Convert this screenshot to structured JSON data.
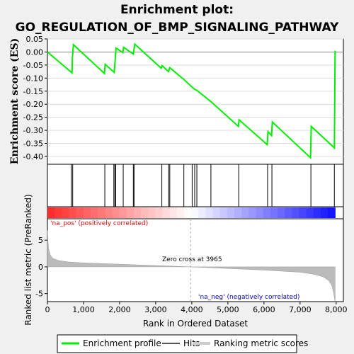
{
  "title_line1": "Enrichment plot:",
  "title_line2": "GO_REGULATION_OF_BMP_SIGNALING_PATHWAY",
  "chart_data": {
    "type": "line",
    "es_panel": {
      "ylabel": "Enrichment score (ES)",
      "ylim": [
        -0.43,
        0.05
      ],
      "yticks": [
        0.05,
        0.0,
        -0.05,
        -0.1,
        -0.15,
        -0.2,
        -0.25,
        -0.3,
        -0.35,
        -0.4
      ],
      "ytick_labels": [
        "0.05",
        "0.00",
        "-0.05",
        "-0.10",
        "-0.15",
        "-0.20",
        "-0.25",
        "-0.30",
        "-0.35",
        "-0.40"
      ],
      "series": [
        {
          "name": "Enrichment profile",
          "color": "#00ee00",
          "x": [
            0,
            680,
            690,
            720,
            1580,
            1600,
            1850,
            1870,
            1900,
            2090,
            2110,
            2380,
            2420,
            3150,
            3180,
            3350,
            3390,
            3780,
            4050,
            4150,
            4530,
            5290,
            5310,
            6090,
            6110,
            6210,
            6230,
            7290,
            7310,
            7950,
            7970
          ],
          "y": [
            0.0,
            -0.08,
            -0.025,
            0.028,
            -0.082,
            -0.047,
            -0.078,
            -0.045,
            0.015,
            -0.002,
            0.018,
            -0.008,
            0.03,
            -0.062,
            -0.052,
            -0.075,
            -0.06,
            -0.105,
            -0.14,
            -0.148,
            -0.19,
            -0.285,
            -0.26,
            -0.355,
            -0.305,
            -0.32,
            -0.268,
            -0.405,
            -0.285,
            -0.367,
            0.005
          ]
        }
      ]
    },
    "hits": [
      660,
      700,
      1590,
      1840,
      1870,
      1890,
      2100,
      2380,
      2400,
      3170,
      3360,
      3390,
      3780,
      4010,
      4080,
      4140,
      4530,
      5300,
      6100,
      6220,
      7300,
      7950
    ],
    "rank_panel": {
      "ylabel": "Ranked list metric (PreRanked)",
      "xlabel": "Rank in Ordered Dataset",
      "xlim": [
        0,
        8200
      ],
      "ylim": [
        -6.5,
        9
      ],
      "xticks": [
        0,
        1000,
        2000,
        3000,
        4000,
        5000,
        6000,
        7000,
        8000
      ],
      "xtick_labels": [
        "0",
        "1,000",
        "2,000",
        "3,000",
        "4,000",
        "5,000",
        "6,000",
        "7,000",
        "8,000"
      ],
      "yticks": [
        5,
        0,
        -5
      ],
      "ytick_labels": [
        "5",
        "0",
        "-5"
      ],
      "n_genes": 7970,
      "zero_cross": 3965,
      "profile_x": [
        0,
        30,
        80,
        150,
        300,
        600,
        1000,
        2000,
        3000,
        3965,
        5000,
        6000,
        7000,
        7400,
        7650,
        7800,
        7880,
        7930,
        7960,
        7970
      ],
      "profile_y": [
        6.8,
        3.5,
        2.2,
        1.6,
        1.2,
        0.9,
        0.75,
        0.5,
        0.25,
        0.0,
        -0.3,
        -0.6,
        -1.0,
        -1.4,
        -1.9,
        -2.6,
        -3.5,
        -4.8,
        -6.2,
        -6.5
      ],
      "annotations": {
        "pos": "'na_pos' (positively correlated)",
        "neg": "'na_neg' (negatively correlated)",
        "zero": "Zero cross at 3965"
      }
    },
    "legend": [
      {
        "label": "Enrichment profile",
        "color": "#00ee00"
      },
      {
        "label": "Hits",
        "color": "#555555"
      },
      {
        "label": "Ranking metric scores",
        "color": "#cccccc"
      }
    ],
    "colors": {
      "es_line": "#00ee00",
      "hit_line": "#000000",
      "metric_fill": "#bbbbbb",
      "pos_label": "#ff0000",
      "neg_label": "#0000ee"
    }
  }
}
